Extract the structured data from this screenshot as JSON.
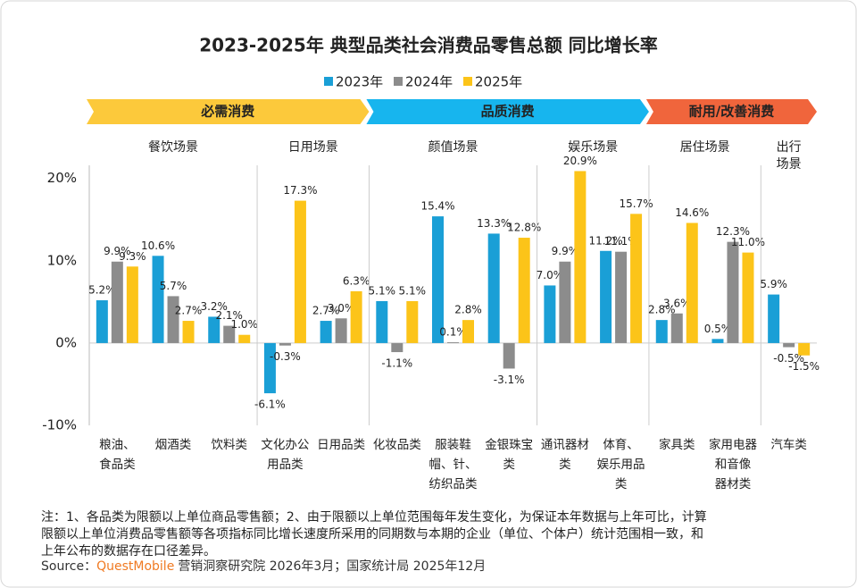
{
  "chart_data": {
    "type": "bar",
    "title": "2023-2025年 典型品类社会消费品零售总额 同比增长率",
    "ylim": [
      -10,
      21.6
    ],
    "yticks": [
      {
        "value": 20,
        "label": "20%"
      },
      {
        "value": 10,
        "label": "10%"
      },
      {
        "value": 0,
        "label": "0%"
      },
      {
        "value": -10,
        "label": "-10%"
      }
    ],
    "grid": false,
    "legend": "top",
    "groups": [
      {
        "label": "必需消费",
        "color": "#fcc93b",
        "scenes": [
          {
            "label": [
              "餐饮场景"
            ],
            "categories": [
              [
                "粮油、",
                "食品类"
              ],
              [
                "烟酒类"
              ],
              [
                "饮料类"
              ]
            ]
          },
          {
            "label": [
              "日用场景"
            ],
            "categories": [
              [
                "文化办公",
                "用品类"
              ],
              [
                "日用品类"
              ]
            ]
          }
        ]
      },
      {
        "label": "品质消费",
        "color": "#17b5ee",
        "scenes": [
          {
            "label": [
              "颜值场景"
            ],
            "categories": [
              [
                "化妆品类"
              ],
              [
                "服装鞋",
                "帽、针、",
                "纺织品类"
              ],
              [
                "金银珠宝",
                "类"
              ]
            ]
          },
          {
            "label": [
              "娱乐场景"
            ],
            "categories": [
              [
                "通讯器材",
                "类"
              ],
              [
                "体育、",
                "娱乐用品",
                "类"
              ]
            ]
          }
        ]
      },
      {
        "label": "耐用/改善消费",
        "color": "#f0653c",
        "scenes": [
          {
            "label": [
              "居住场景"
            ],
            "categories": [
              [
                "家具类"
              ],
              [
                "家用电器",
                "和音像",
                "器材类"
              ]
            ]
          },
          {
            "label": [
              "出行",
              "场景"
            ],
            "categories": [
              [
                "汽车类"
              ]
            ]
          }
        ]
      }
    ],
    "series": [
      {
        "name": "2023年",
        "color": "#1a9fd6",
        "values": [
          5.2,
          10.6,
          3.2,
          -6.1,
          2.7,
          5.1,
          15.4,
          13.3,
          7.0,
          11.2,
          2.8,
          0.5,
          5.9
        ],
        "value_labels": [
          "5.2%",
          "10.6%",
          "3.2%",
          "-6.1%",
          "2.7%",
          "5.1%",
          "15.4%",
          "13.3%",
          "7.0%",
          "11.2%",
          "2.8%",
          "0.5%",
          "5.9%"
        ]
      },
      {
        "name": "2024年",
        "color": "#8c8c8c",
        "values": [
          9.9,
          5.7,
          2.1,
          -0.3,
          3.0,
          -1.1,
          0.1,
          -3.1,
          9.9,
          11.1,
          3.6,
          12.3,
          -0.5
        ],
        "value_labels": [
          "9.9%",
          "5.7%",
          "2.1%",
          "-0.3%",
          "3.0%",
          "-1.1%",
          "0.1%",
          "-3.1%",
          "9.9%",
          "11.1%",
          "3.6%",
          "12.3%",
          "-0.5%"
        ]
      },
      {
        "name": "2025年",
        "color": "#fcc419",
        "values": [
          9.3,
          2.7,
          1.0,
          17.3,
          6.3,
          5.1,
          2.8,
          12.8,
          20.9,
          15.7,
          14.6,
          11.0,
          -1.5
        ],
        "value_labels": [
          "9.3%",
          "2.7%",
          "1.0%",
          "17.3%",
          "6.3%",
          "5.1%",
          "2.8%",
          "12.8%",
          "20.9%",
          "15.7%",
          "14.6%",
          "11.0%",
          "-1.5%"
        ]
      }
    ],
    "notes": [
      "注：1、各品类为限额以上单位商品零售额；2、由于限额以上单位范围每年发生变化，为保证本年数据与上年可比，计算",
      "限额以上单位消费品零售额等各项指标同比增长速度所采用的同期数与本期的企业（单位、个体户）统计范围相一致，和",
      "上年公布的数据存在口径差异。"
    ],
    "source": {
      "prefix": "Source：",
      "brand": "QuestMobile",
      "text": "营销洞察研究院 2026年3月；国家统计局 2025年12月"
    }
  }
}
